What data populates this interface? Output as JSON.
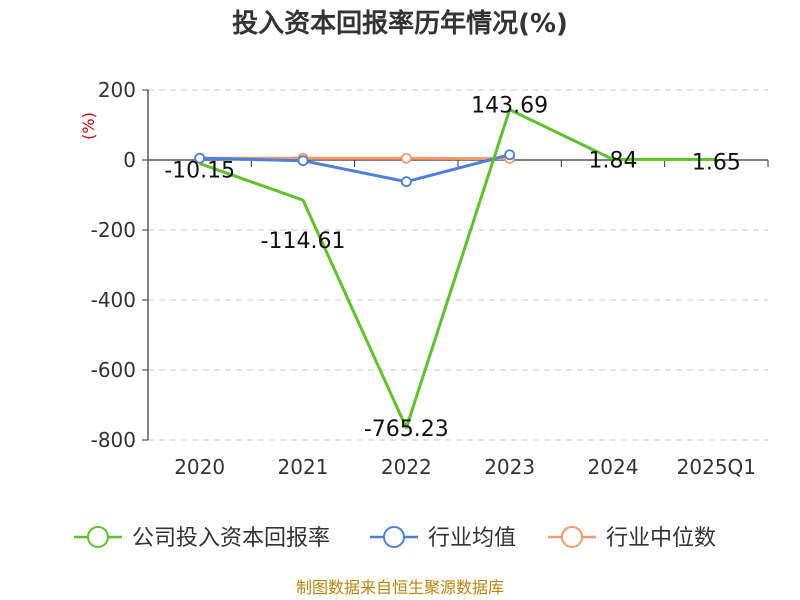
{
  "chart_data": {
    "type": "line",
    "title": "投入资本回报率历年情况(%)",
    "ylabel": "(%)",
    "categories": [
      "2020",
      "2021",
      "2022",
      "2023",
      "2024",
      "2025Q1"
    ],
    "ylim": [
      -800,
      200
    ],
    "yticks": [
      200,
      0,
      -200,
      -400,
      -600,
      -800
    ],
    "grid": true,
    "legend_position": "bottom",
    "series": [
      {
        "name": "公司投入资本回报率",
        "color": "#5ec22b",
        "values": [
          -10.15,
          -114.61,
          -765.23,
          143.69,
          1.84,
          1.65
        ],
        "labels": [
          "-10.15",
          "-114.61",
          "-765.23",
          "143.69",
          "1.84",
          "1.65"
        ]
      },
      {
        "name": "行业均值",
        "color": "#4e7fd6",
        "values": [
          5,
          -2,
          -62,
          15,
          null,
          null
        ]
      },
      {
        "name": "行业中位数",
        "color": "#f59a6e",
        "values": [
          5,
          5,
          5,
          4,
          null,
          null
        ]
      }
    ]
  },
  "source": "制图数据来自恒生聚源数据库"
}
